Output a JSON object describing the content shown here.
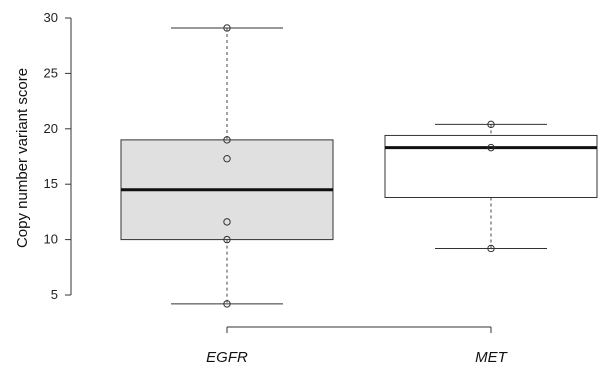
{
  "chart_data": {
    "type": "box",
    "ylabel": "Copy number variant score",
    "xlabel": "",
    "ylim": [
      4,
      30
    ],
    "yticks": [
      5,
      10,
      15,
      20,
      25,
      30
    ],
    "categories": [
      "EGFR",
      "MET"
    ],
    "boxes": [
      {
        "name": "EGFR",
        "fill": "#e0e0e0",
        "whisker_low": 4.2,
        "q1": 10.0,
        "median": 14.5,
        "q3": 19.0,
        "whisker_high": 29.1,
        "points": [
          29.1,
          19.0,
          17.3,
          11.6,
          10.0,
          4.2
        ]
      },
      {
        "name": "MET",
        "fill": "#ffffff",
        "whisker_low": 9.2,
        "q1": 13.8,
        "median": 18.3,
        "q3": 19.4,
        "whisker_high": 20.4,
        "points": [
          20.4,
          18.3,
          9.2
        ]
      }
    ],
    "grid": false,
    "legend": "none"
  }
}
